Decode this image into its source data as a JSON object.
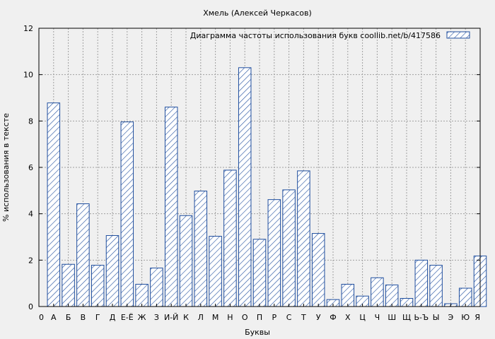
{
  "chart_data": {
    "type": "bar",
    "title": "Хмель (Алексей Черкасов)",
    "xlabel": "Буквы",
    "ylabel": "% использования в тексте",
    "legend": {
      "label": "Диаграмма частоты использования букв  coollib.net/b/417586",
      "placement": "top-right"
    },
    "ylim": [
      0,
      12
    ],
    "yticks": [
      0,
      2,
      4,
      6,
      8,
      10,
      12
    ],
    "grid": true,
    "x_tick_labels": [
      "0",
      "А",
      "Б",
      "В",
      "Г",
      "Д",
      "Е-Ё",
      "Ж",
      "З",
      "И-Й",
      "К",
      "Л",
      "М",
      "Н",
      "О",
      "П",
      "Р",
      "С",
      "Т",
      "У",
      "Ф",
      "Х",
      "Ц",
      "Ч",
      "Ш",
      "Щ",
      "Ь-Ъ",
      "Ы",
      "Э",
      "Ю",
      "Я"
    ],
    "categories": [
      "А",
      "Б",
      "В",
      "Г",
      "Д",
      "Е-Ё",
      "Ж",
      "З",
      "И-Й",
      "К",
      "Л",
      "М",
      "Н",
      "О",
      "П",
      "Р",
      "С",
      "Т",
      "У",
      "Ф",
      "Х",
      "Ц",
      "Ч",
      "Ш",
      "Щ",
      "Ь-Ъ",
      "Ы",
      "Э",
      "Ю",
      "Я"
    ],
    "values": [
      8.78,
      1.82,
      4.43,
      1.78,
      3.06,
      7.96,
      0.96,
      1.66,
      8.6,
      3.92,
      4.98,
      3.03,
      5.88,
      10.3,
      2.9,
      4.61,
      5.03,
      5.85,
      3.15,
      0.3,
      0.96,
      0.45,
      1.24,
      0.93,
      0.35,
      2.0,
      1.78,
      0.12,
      0.79,
      2.18
    ]
  },
  "colors": {
    "background": "#f0f0f0",
    "bar_stroke": "#1f4e9e",
    "hatch": "#1f4e9e",
    "grid": "#a0a0a0",
    "axis": "#000000"
  }
}
